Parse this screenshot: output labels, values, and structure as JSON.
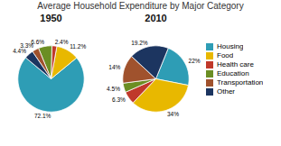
{
  "chart_data": {
    "type": "pie",
    "title": "Average Household Expenditure by Major Category",
    "categories": [
      "Housing",
      "Food",
      "Health care",
      "Education",
      "Transportation",
      "Other"
    ],
    "colors": [
      "#2E9DB5",
      "#E8B800",
      "#C0392B",
      "#6B8E23",
      "#A0522D",
      "#1C3560"
    ],
    "series": [
      {
        "name": "1950",
        "values": [
          72.1,
          11.2,
          2.4,
          6.6,
          3.3,
          4.4
        ],
        "value_labels": [
          "72.1%",
          "11.2%",
          "2.4%",
          "6.6%",
          "3.3%",
          "4.4%"
        ]
      },
      {
        "name": "2010",
        "values": [
          22.0,
          34.0,
          6.3,
          4.5,
          14.0,
          19.2
        ],
        "value_labels": [
          "22%",
          "34%",
          "6.3%",
          "4.5%",
          "14%",
          "19.2%"
        ]
      }
    ],
    "data_labels": true,
    "legend": "right"
  }
}
